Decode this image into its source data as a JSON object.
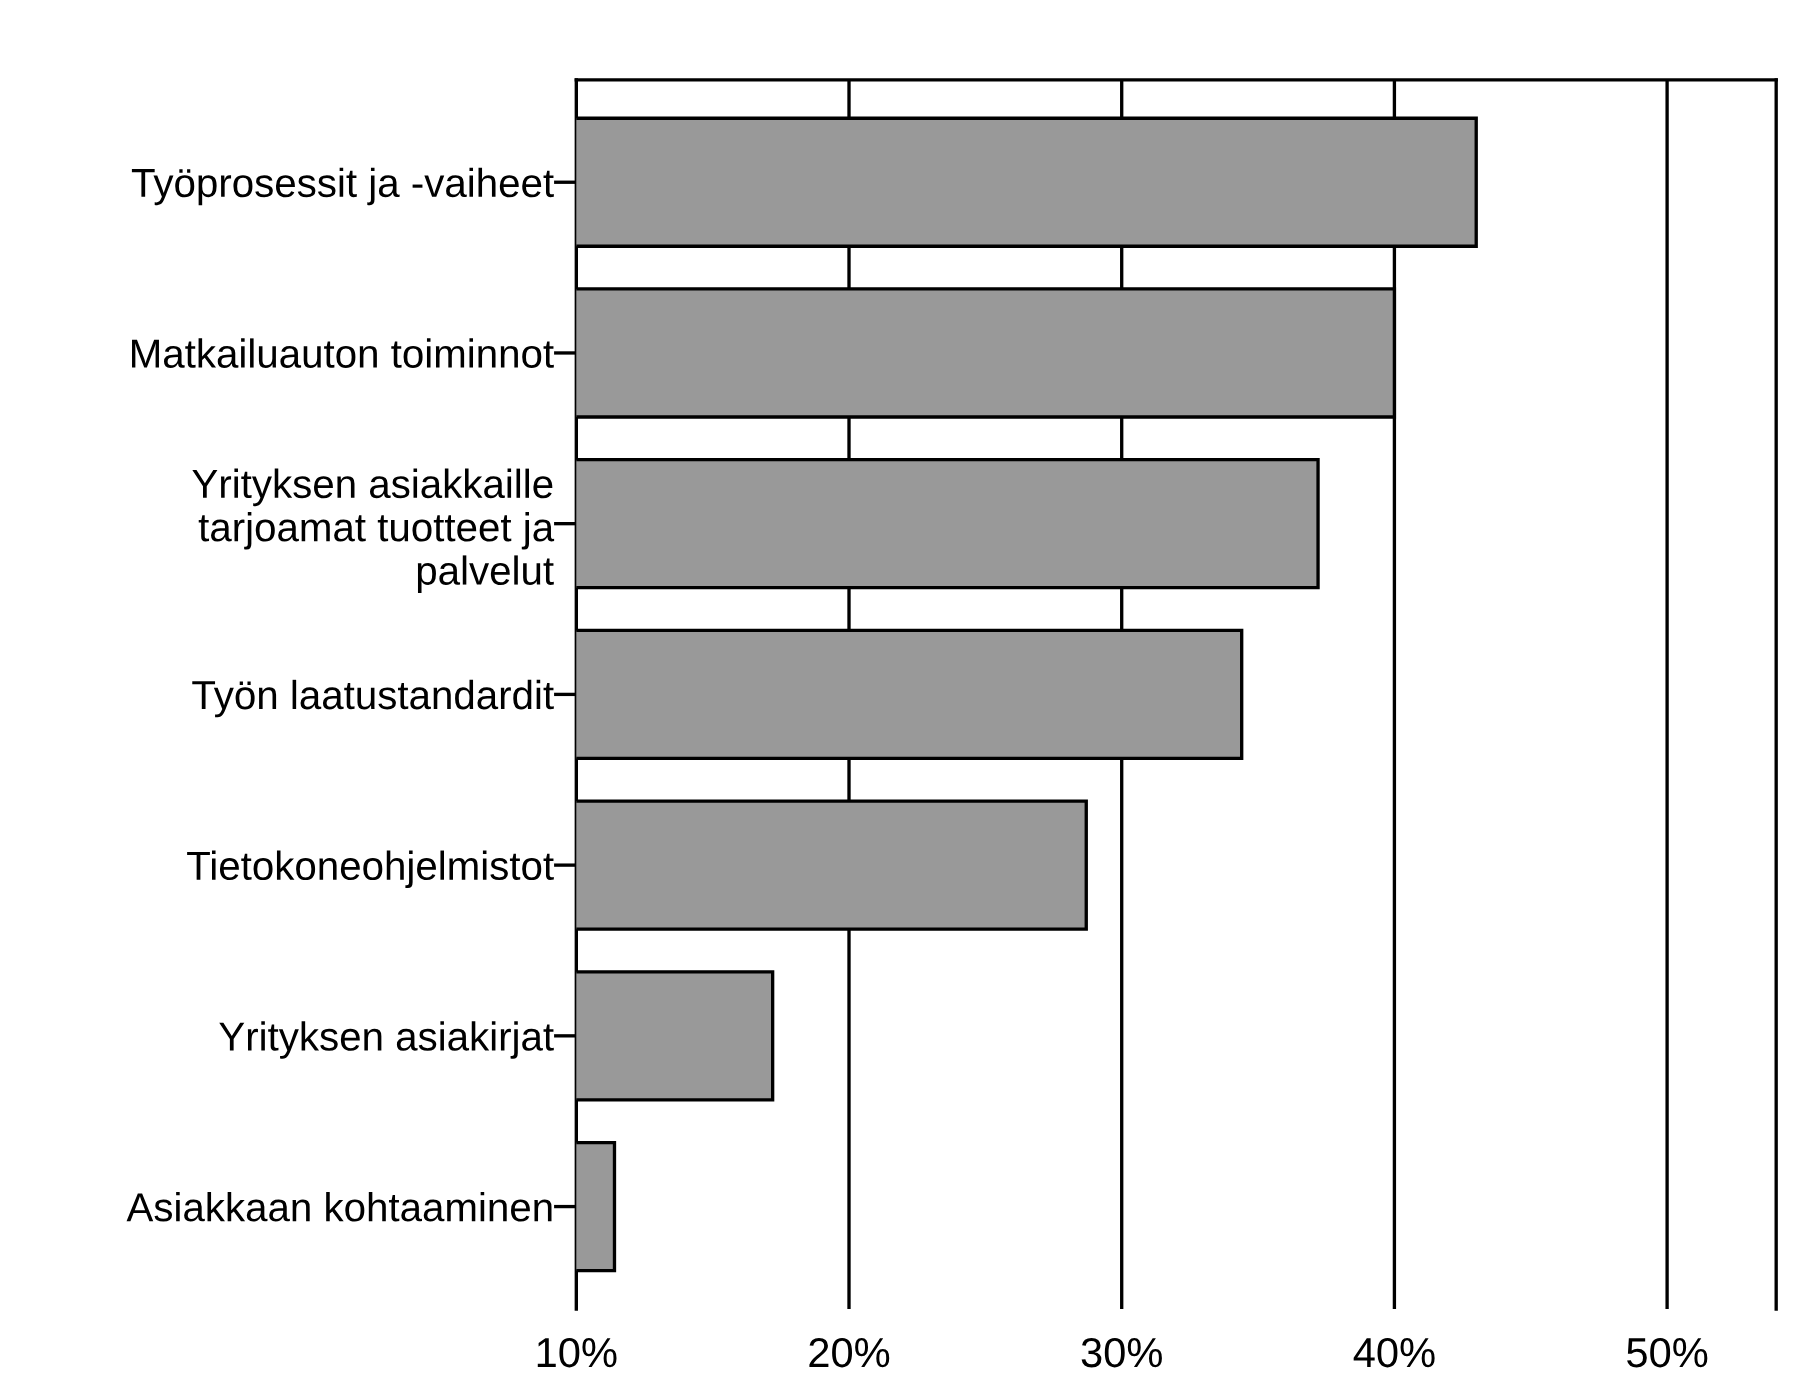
{
  "chart_data": {
    "type": "bar",
    "orientation": "horizontal",
    "categories": [
      "Työprosessit ja -vaiheet",
      "Matkailuauton toiminnot",
      "Yrityksen asiakkaille\ntarjoamat tuotteet ja\npalvelut",
      "Työn laatustandardit",
      "Tietokoneohjelmistot",
      "Yrityksen asiakirjat",
      "Asiakkaan kohtaaminen"
    ],
    "values": [
      43.0,
      40.0,
      37.2,
      34.4,
      28.7,
      17.2,
      11.4
    ],
    "color": "#999999",
    "xlim": [
      10,
      54
    ],
    "xticks": [
      {
        "value": 10,
        "label": "10%"
      },
      {
        "value": 20,
        "label": "20%"
      },
      {
        "value": 30,
        "label": "30%"
      },
      {
        "value": 40,
        "label": "40%"
      },
      {
        "value": 50,
        "label": "50%"
      }
    ],
    "grid": "x"
  }
}
